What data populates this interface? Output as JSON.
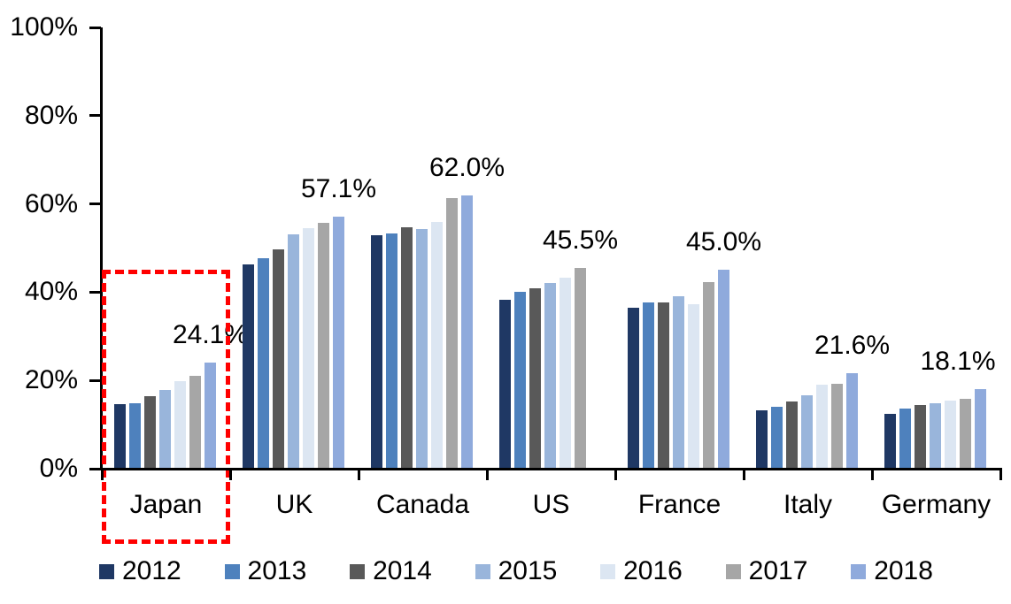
{
  "chart_data": {
    "type": "bar",
    "title": "",
    "xlabel": "",
    "ylabel": "",
    "ylim": [
      0,
      100
    ],
    "grid": false,
    "legend_position": "bottom",
    "categories": [
      "Japan",
      "UK",
      "Canada",
      "US",
      "France",
      "Italy",
      "Germany"
    ],
    "series": [
      {
        "name": "2012",
        "color": "#1F3864",
        "values": [
          14.7,
          46.2,
          53.0,
          38.3,
          36.5,
          13.3,
          12.4
        ]
      },
      {
        "name": "2013",
        "color": "#4E81BD",
        "values": [
          14.9,
          47.7,
          53.4,
          40.0,
          37.7,
          14.1,
          13.7
        ]
      },
      {
        "name": "2014",
        "color": "#595959",
        "values": [
          16.5,
          49.7,
          54.7,
          40.9,
          37.7,
          15.2,
          14.4
        ]
      },
      {
        "name": "2015",
        "color": "#99B5DB",
        "values": [
          17.9,
          53.2,
          54.4,
          42.1,
          39.1,
          16.7,
          14.8
        ]
      },
      {
        "name": "2016",
        "color": "#DCE6F2",
        "values": [
          19.9,
          54.5,
          55.9,
          43.3,
          37.3,
          19.0,
          15.4
        ]
      },
      {
        "name": "2017",
        "color": "#A6A6A6",
        "values": [
          21.1,
          55.7,
          61.4,
          45.5,
          42.3,
          19.2,
          15.9
        ]
      },
      {
        "name": "2018",
        "color": "#8FAADC",
        "values": [
          24.1,
          57.1,
          62.0,
          null,
          45.0,
          21.6,
          18.1
        ]
      }
    ],
    "data_labels": [
      "24.1%",
      "57.1%",
      "62.0%",
      "45.5%",
      "45.0%",
      "21.6%",
      "18.1%"
    ],
    "yticks": [
      {
        "label": "0%",
        "value": 0
      },
      {
        "label": "20%",
        "value": 20
      },
      {
        "label": "40%",
        "value": 40
      },
      {
        "label": "60%",
        "value": 60
      },
      {
        "label": "80%",
        "value": 80
      },
      {
        "label": "100%",
        "value": 100
      }
    ],
    "highlight": {
      "category": "Japan",
      "style": "red-dashed-box",
      "color": "#FF0000"
    }
  }
}
